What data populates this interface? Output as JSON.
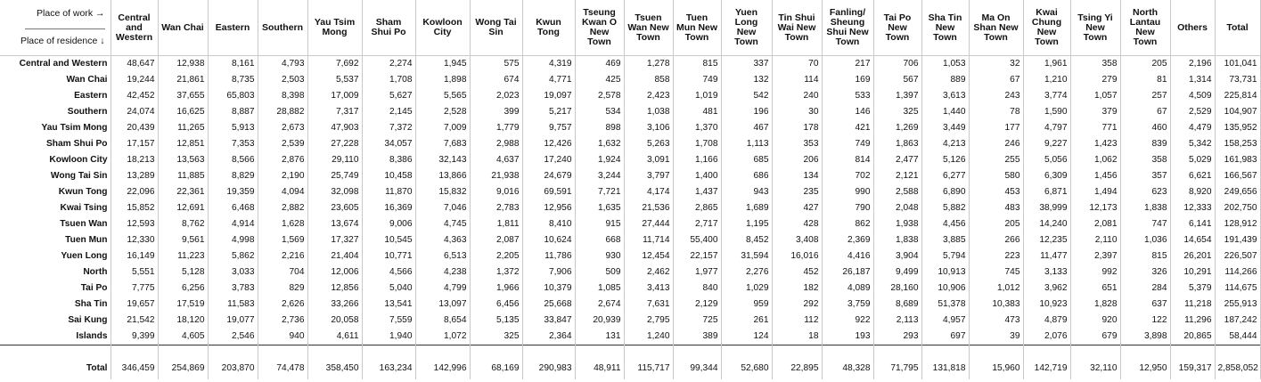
{
  "corner": {
    "work_label": "Place of work →",
    "residence_label": "Place of residence ↓"
  },
  "columns": [
    "Central and Western",
    "Wan Chai",
    "Eastern",
    "Southern",
    "Yau Tsim Mong",
    "Sham Shui Po",
    "Kowloon City",
    "Wong Tai Sin",
    "Kwun Tong",
    "Tseung Kwan O New Town",
    "Tsuen Wan New Town",
    "Tuen Mun New Town",
    "Yuen Long New Town",
    "Tin Shui Wai New Town",
    "Fanling/ Sheung Shui New Town",
    "Tai Po New Town",
    "Sha Tin New Town",
    "Ma On Shan New Town",
    "Kwai Chung New Town",
    "Tsing Yi New Town",
    "North Lantau New Town",
    "Others",
    "Total"
  ],
  "rows": [
    {
      "label": "Central and Western",
      "values": [
        "48,647",
        "12,938",
        "8,161",
        "4,793",
        "7,692",
        "2,274",
        "1,945",
        "575",
        "4,319",
        "469",
        "1,278",
        "815",
        "337",
        "70",
        "217",
        "706",
        "1,053",
        "32",
        "1,961",
        "358",
        "205",
        "2,196",
        "101,041"
      ]
    },
    {
      "label": "Wan Chai",
      "values": [
        "19,244",
        "21,861",
        "8,735",
        "2,503",
        "5,537",
        "1,708",
        "1,898",
        "674",
        "4,771",
        "425",
        "858",
        "749",
        "132",
        "114",
        "169",
        "567",
        "889",
        "67",
        "1,210",
        "279",
        "81",
        "1,314",
        "73,731"
      ]
    },
    {
      "label": "Eastern",
      "values": [
        "42,452",
        "37,655",
        "65,803",
        "8,398",
        "17,009",
        "5,627",
        "5,565",
        "2,023",
        "19,097",
        "2,578",
        "2,423",
        "1,019",
        "542",
        "240",
        "533",
        "1,397",
        "3,613",
        "243",
        "3,774",
        "1,057",
        "257",
        "4,509",
        "225,814"
      ]
    },
    {
      "label": "Southern",
      "values": [
        "24,074",
        "16,625",
        "8,887",
        "28,882",
        "7,317",
        "2,145",
        "2,528",
        "399",
        "5,217",
        "534",
        "1,038",
        "481",
        "196",
        "30",
        "146",
        "325",
        "1,440",
        "78",
        "1,590",
        "379",
        "67",
        "2,529",
        "104,907"
      ]
    },
    {
      "label": "Yau Tsim Mong",
      "values": [
        "20,439",
        "11,265",
        "5,913",
        "2,673",
        "47,903",
        "7,372",
        "7,009",
        "1,779",
        "9,757",
        "898",
        "3,106",
        "1,370",
        "467",
        "178",
        "421",
        "1,269",
        "3,449",
        "177",
        "4,797",
        "771",
        "460",
        "4,479",
        "135,952"
      ]
    },
    {
      "label": "Sham Shui Po",
      "values": [
        "17,157",
        "12,851",
        "7,353",
        "2,539",
        "27,228",
        "34,057",
        "7,683",
        "2,988",
        "12,426",
        "1,632",
        "5,263",
        "1,708",
        "1,113",
        "353",
        "749",
        "1,863",
        "4,213",
        "246",
        "9,227",
        "1,423",
        "839",
        "5,342",
        "158,253"
      ]
    },
    {
      "label": "Kowloon City",
      "values": [
        "18,213",
        "13,563",
        "8,566",
        "2,876",
        "29,110",
        "8,386",
        "32,143",
        "4,637",
        "17,240",
        "1,924",
        "3,091",
        "1,166",
        "685",
        "206",
        "814",
        "2,477",
        "5,126",
        "255",
        "5,056",
        "1,062",
        "358",
        "5,029",
        "161,983"
      ]
    },
    {
      "label": "Wong Tai Sin",
      "values": [
        "13,289",
        "11,885",
        "8,829",
        "2,190",
        "25,749",
        "10,458",
        "13,866",
        "21,938",
        "24,679",
        "3,244",
        "3,797",
        "1,400",
        "686",
        "134",
        "702",
        "2,121",
        "6,277",
        "580",
        "6,309",
        "1,456",
        "357",
        "6,621",
        "166,567"
      ]
    },
    {
      "label": "Kwun Tong",
      "values": [
        "22,096",
        "22,361",
        "19,359",
        "4,094",
        "32,098",
        "11,870",
        "15,832",
        "9,016",
        "69,591",
        "7,721",
        "4,174",
        "1,437",
        "943",
        "235",
        "990",
        "2,588",
        "6,890",
        "453",
        "6,871",
        "1,494",
        "623",
        "8,920",
        "249,656"
      ]
    },
    {
      "label": "Kwai Tsing",
      "values": [
        "15,852",
        "12,691",
        "6,468",
        "2,882",
        "23,605",
        "16,369",
        "7,046",
        "2,783",
        "12,956",
        "1,635",
        "21,536",
        "2,865",
        "1,689",
        "427",
        "790",
        "2,048",
        "5,882",
        "483",
        "38,999",
        "12,173",
        "1,838",
        "12,333",
        "202,750"
      ]
    },
    {
      "label": "Tsuen Wan",
      "values": [
        "12,593",
        "8,762",
        "4,914",
        "1,628",
        "13,674",
        "9,006",
        "4,745",
        "1,811",
        "8,410",
        "915",
        "27,444",
        "2,717",
        "1,195",
        "428",
        "862",
        "1,938",
        "4,456",
        "205",
        "14,240",
        "2,081",
        "747",
        "6,141",
        "128,912"
      ]
    },
    {
      "label": "Tuen Mun",
      "values": [
        "12,330",
        "9,561",
        "4,998",
        "1,569",
        "17,327",
        "10,545",
        "4,363",
        "2,087",
        "10,624",
        "668",
        "11,714",
        "55,400",
        "8,452",
        "3,408",
        "2,369",
        "1,838",
        "3,885",
        "266",
        "12,235",
        "2,110",
        "1,036",
        "14,654",
        "191,439"
      ]
    },
    {
      "label": "Yuen Long",
      "values": [
        "16,149",
        "11,223",
        "5,862",
        "2,216",
        "21,404",
        "10,771",
        "6,513",
        "2,205",
        "11,786",
        "930",
        "12,454",
        "22,157",
        "31,594",
        "16,016",
        "4,416",
        "3,904",
        "5,794",
        "223",
        "11,477",
        "2,397",
        "815",
        "26,201",
        "226,507"
      ]
    },
    {
      "label": "North",
      "values": [
        "5,551",
        "5,128",
        "3,033",
        "704",
        "12,006",
        "4,566",
        "4,238",
        "1,372",
        "7,906",
        "509",
        "2,462",
        "1,977",
        "2,276",
        "452",
        "26,187",
        "9,499",
        "10,913",
        "745",
        "3,133",
        "992",
        "326",
        "10,291",
        "114,266"
      ]
    },
    {
      "label": "Tai Po",
      "values": [
        "7,775",
        "6,256",
        "3,783",
        "829",
        "12,856",
        "5,040",
        "4,799",
        "1,966",
        "10,379",
        "1,085",
        "3,413",
        "840",
        "1,029",
        "182",
        "4,089",
        "28,160",
        "10,906",
        "1,012",
        "3,962",
        "651",
        "284",
        "5,379",
        "114,675"
      ]
    },
    {
      "label": "Sha Tin",
      "values": [
        "19,657",
        "17,519",
        "11,583",
        "2,626",
        "33,266",
        "13,541",
        "13,097",
        "6,456",
        "25,668",
        "2,674",
        "7,631",
        "2,129",
        "959",
        "292",
        "3,759",
        "8,689",
        "51,378",
        "10,383",
        "10,923",
        "1,828",
        "637",
        "11,218",
        "255,913"
      ]
    },
    {
      "label": "Sai Kung",
      "values": [
        "21,542",
        "18,120",
        "19,077",
        "2,736",
        "20,058",
        "7,559",
        "8,654",
        "5,135",
        "33,847",
        "20,939",
        "2,795",
        "725",
        "261",
        "112",
        "922",
        "2,113",
        "4,957",
        "473",
        "4,879",
        "920",
        "122",
        "11,296",
        "187,242"
      ]
    },
    {
      "label": "Islands",
      "values": [
        "9,399",
        "4,605",
        "2,546",
        "940",
        "4,611",
        "1,940",
        "1,072",
        "325",
        "2,364",
        "131",
        "1,240",
        "389",
        "124",
        "18",
        "193",
        "293",
        "697",
        "39",
        "2,076",
        "679",
        "3,898",
        "20,865",
        "58,444"
      ]
    }
  ],
  "total_row": {
    "label": "Total",
    "values": [
      "346,459",
      "254,869",
      "203,870",
      "74,478",
      "358,450",
      "163,234",
      "142,996",
      "68,169",
      "290,983",
      "48,911",
      "115,717",
      "99,344",
      "52,680",
      "22,895",
      "48,328",
      "71,795",
      "131,818",
      "15,960",
      "142,719",
      "32,110",
      "12,950",
      "159,317",
      "2,858,052"
    ]
  }
}
